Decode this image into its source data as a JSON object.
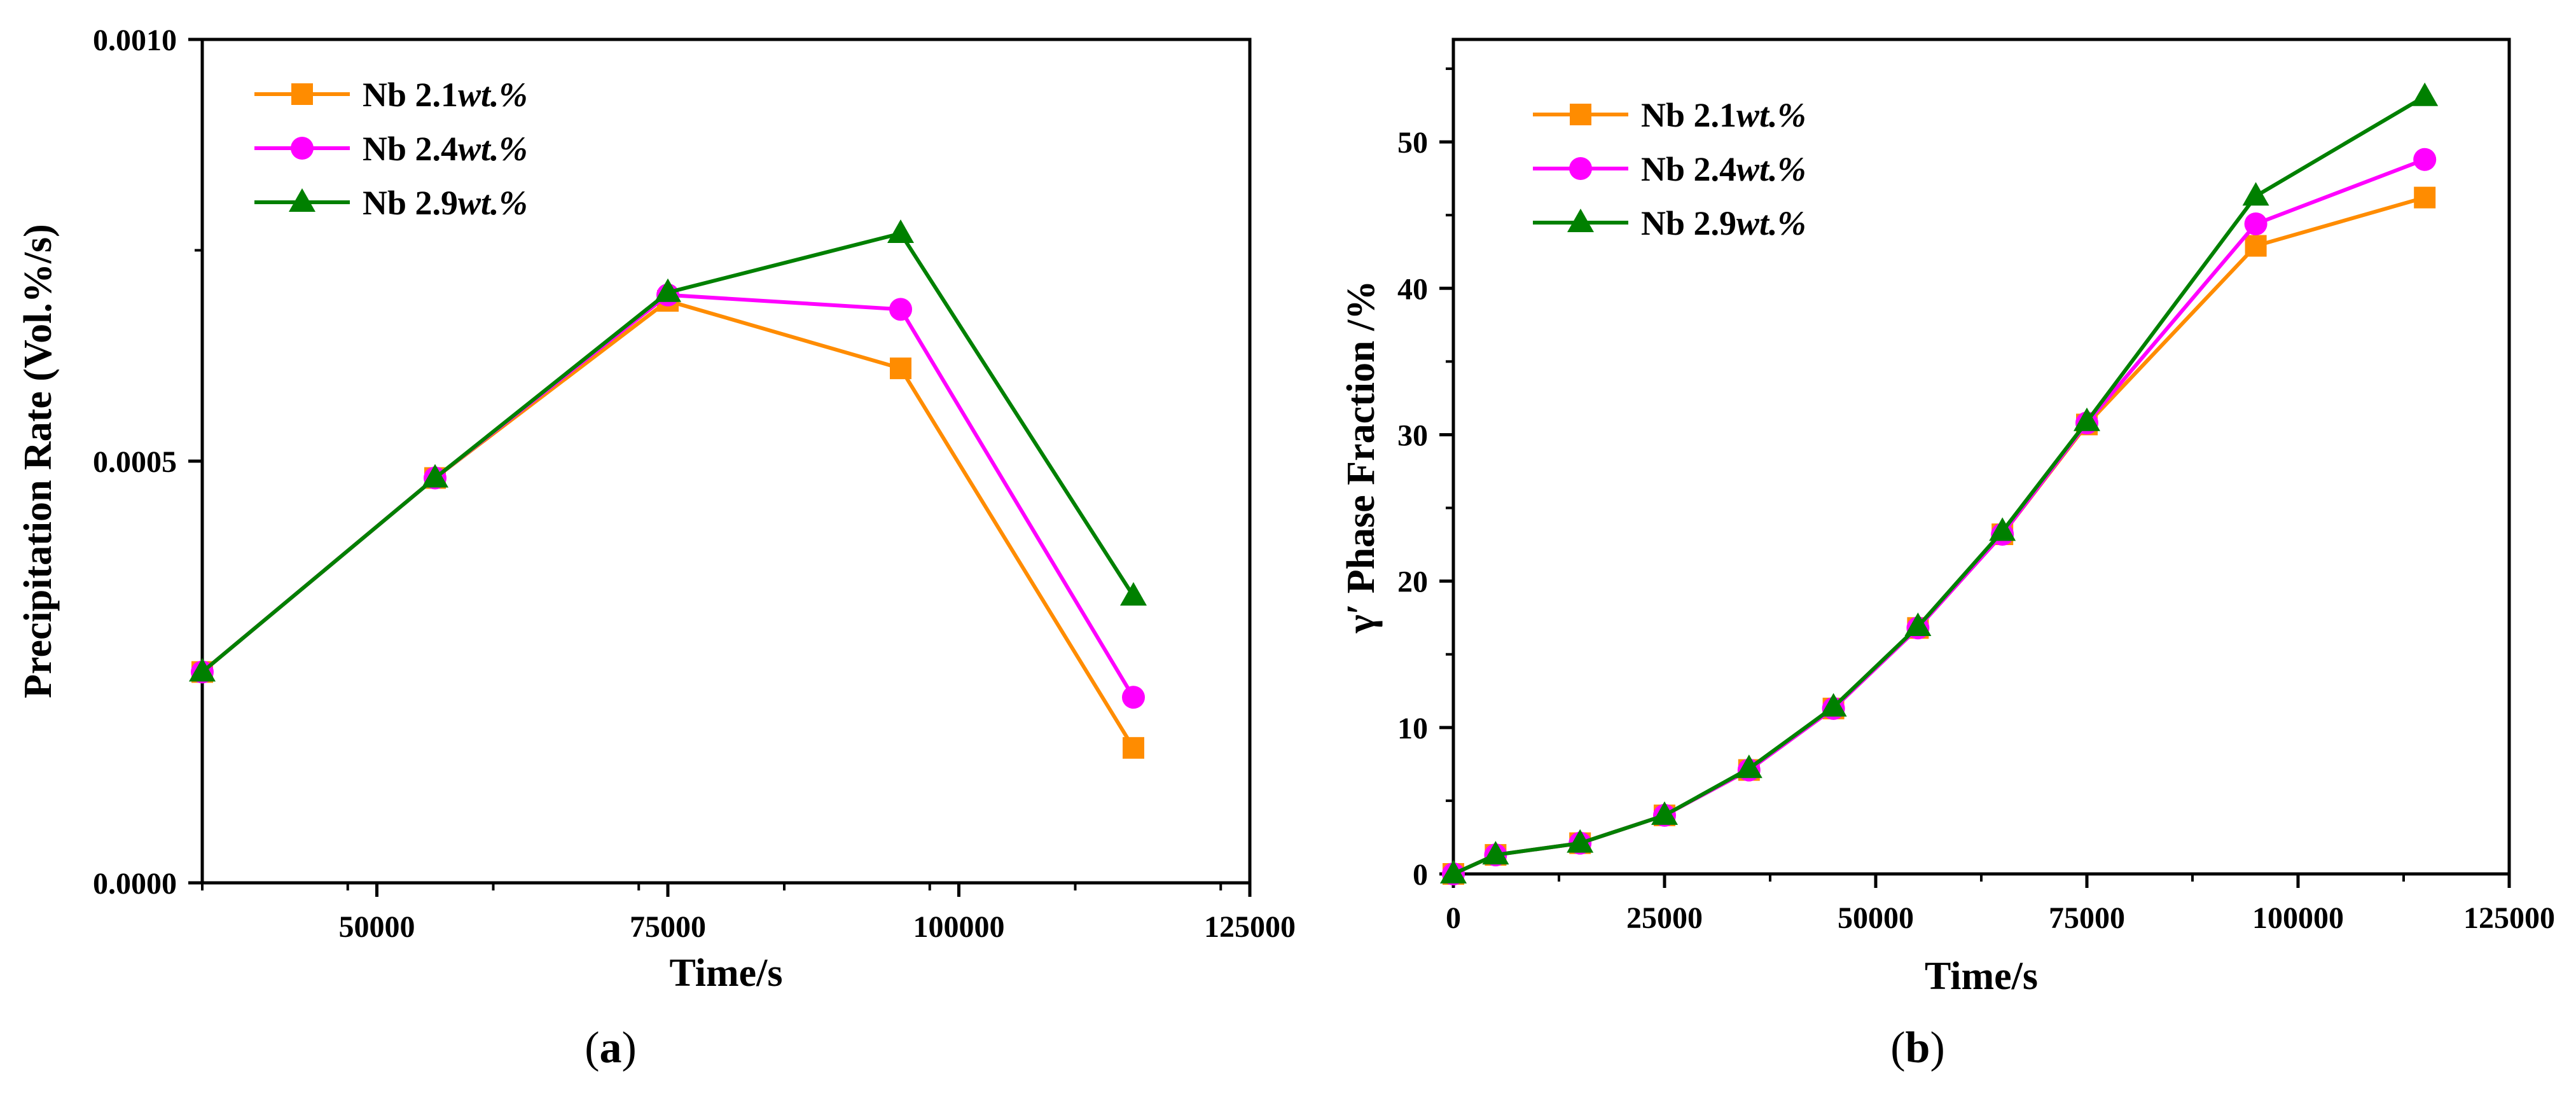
{
  "chart_data": [
    {
      "type": "line",
      "panel_label": "a",
      "title": "",
      "xlabel": "Time/s",
      "ylabel": "Precipitation Rate (Vol.%/s)",
      "xlim": [
        35000,
        125000
      ],
      "ylim": [
        0,
        0.001
      ],
      "xticks": [
        50000,
        75000,
        100000,
        125000
      ],
      "xtick_labels": [
        "50000",
        "75000",
        "100000",
        "125000"
      ],
      "yticks": [
        0,
        0.0005,
        0.001
      ],
      "ytick_labels": [
        "0.0000",
        "0.0005",
        "0.0010"
      ],
      "legend_position": "top-left",
      "x": [
        35000,
        55000,
        75000,
        95000,
        115000
      ],
      "series": [
        {
          "name": "Nb 2.1",
          "name_suffix": "wt.%",
          "color": "#ff8c00",
          "marker": "square",
          "values": [
            0.00025,
            0.00048,
            0.00069,
            0.00061,
            0.00016
          ]
        },
        {
          "name": "Nb 2.4",
          "name_suffix": "wt.%",
          "color": "#ff00ff",
          "marker": "circle",
          "values": [
            0.00025,
            0.00048,
            0.000697,
            0.00068,
            0.00022
          ]
        },
        {
          "name": "Nb 2.9",
          "name_suffix": "wt.%",
          "color": "#008000",
          "marker": "triangle",
          "values": [
            0.00025,
            0.00048,
            0.0007,
            0.00077,
            0.00034
          ]
        }
      ]
    },
    {
      "type": "line",
      "panel_label": "b",
      "title": "",
      "xlabel": "Time/s",
      "ylabel": "γ′ Phase Fraction /%",
      "xlim": [
        0,
        125000
      ],
      "ylim": [
        0,
        57
      ],
      "xticks": [
        0,
        25000,
        50000,
        75000,
        100000,
        125000
      ],
      "xtick_labels": [
        "0",
        "25000",
        "50000",
        "75000",
        "100000",
        "125000"
      ],
      "yticks": [
        0,
        10,
        20,
        30,
        40,
        50
      ],
      "ytick_labels": [
        "0",
        "10",
        "20",
        "30",
        "40",
        "50"
      ],
      "legend_position": "top-left",
      "x": [
        0,
        5000,
        15000,
        25000,
        35000,
        45000,
        55000,
        65000,
        75000,
        95000,
        115000
      ],
      "series": [
        {
          "name": "Nb 2.1",
          "name_suffix": "wt.%",
          "color": "#ff8c00",
          "marker": "square",
          "values": [
            0,
            1.3,
            2.1,
            4.0,
            7.1,
            11.3,
            16.8,
            23.2,
            30.7,
            42.9,
            46.2
          ]
        },
        {
          "name": "Nb 2.4",
          "name_suffix": "wt.%",
          "color": "#ff00ff",
          "marker": "circle",
          "values": [
            0,
            1.3,
            2.1,
            4.0,
            7.1,
            11.3,
            16.8,
            23.2,
            30.8,
            44.4,
            48.8
          ]
        },
        {
          "name": "Nb 2.9",
          "name_suffix": "wt.%",
          "color": "#008000",
          "marker": "triangle",
          "values": [
            0,
            1.3,
            2.1,
            4.0,
            7.2,
            11.4,
            16.9,
            23.4,
            30.9,
            46.3,
            53.1
          ]
        }
      ]
    }
  ]
}
